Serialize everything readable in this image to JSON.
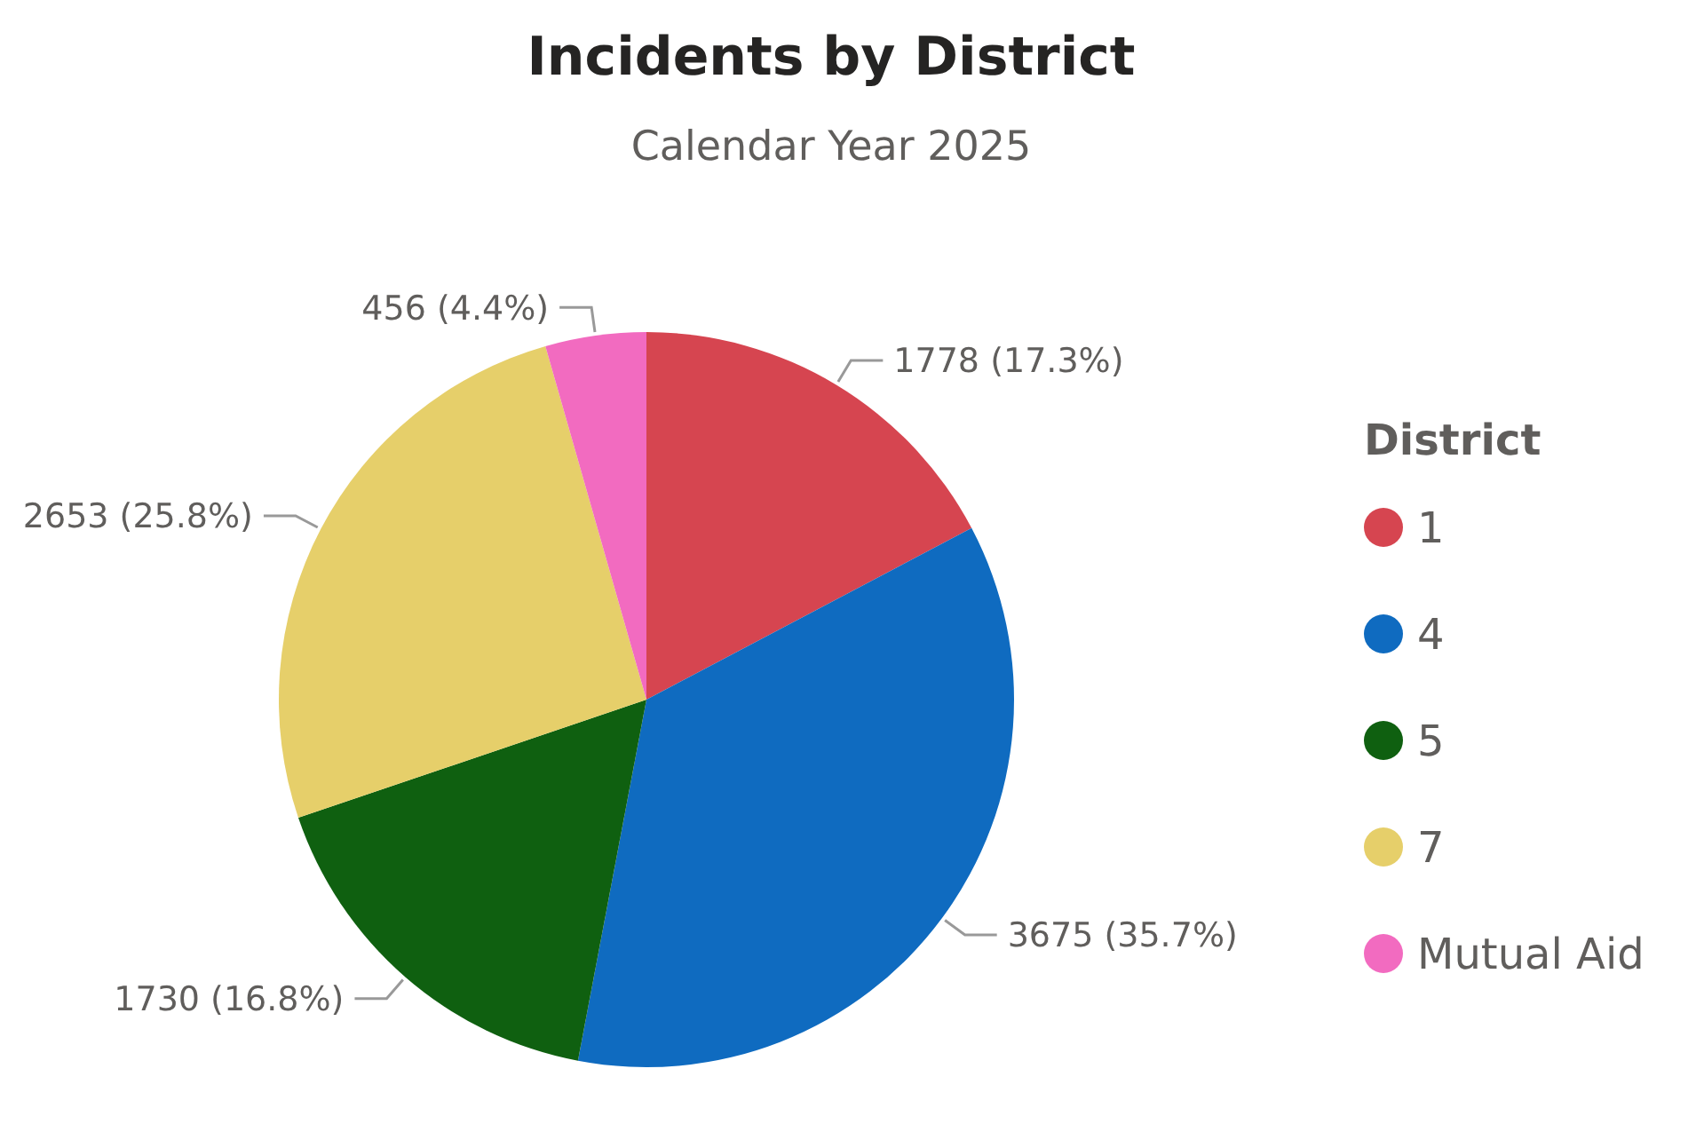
{
  "chart_data": {
    "type": "pie",
    "title": "Incidents by District",
    "subtitle": "Calendar Year 2025",
    "legend_title": "District",
    "legend": "right",
    "categories": [
      "1",
      "4",
      "5",
      "7",
      "Mutual Aid"
    ],
    "values": [
      1778,
      3675,
      1730,
      2653,
      456
    ],
    "colors": [
      "#d64550",
      "#0f6bc0",
      "#0f6010",
      "#e6cf6a",
      "#f26bc0"
    ],
    "value_labels": [
      "1778 (17.3%)",
      "3675 (35.7%)",
      "1730 (16.8%)",
      "2653 (25.8%)",
      "456 (4.4%)"
    ]
  }
}
